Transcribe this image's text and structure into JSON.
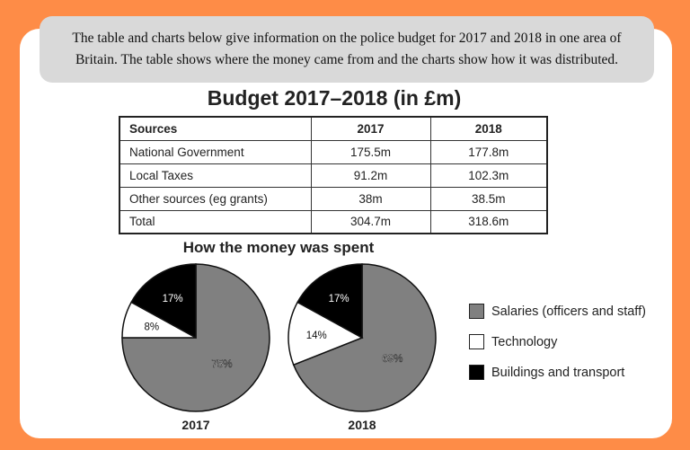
{
  "intro": "The table and charts below give information on the police budget for 2017 and 2018 in one area of Britain. The table shows where the money came from and the charts show how it was distributed.",
  "chart_data": [
    {
      "type": "table",
      "title": "Budget 2017–2018 (in £m)",
      "columns": [
        "Sources",
        "2017",
        "2018"
      ],
      "rows": [
        [
          "National Government",
          "175.5m",
          "177.8m"
        ],
        [
          "Local Taxes",
          "91.2m",
          "102.3m"
        ],
        [
          "Other sources (eg grants)",
          "38m",
          "38.5m"
        ],
        [
          "Total",
          "304.7m",
          "318.6m"
        ]
      ]
    },
    {
      "type": "pie",
      "title": "How the money was spent",
      "categories": [
        "Salaries (officers and staff)",
        "Technology",
        "Buildings and transport"
      ],
      "colors": [
        "#808080",
        "#ffffff",
        "#000000"
      ],
      "series": [
        {
          "name": "2017",
          "values": [
            75,
            8,
            17
          ]
        },
        {
          "name": "2018",
          "values": [
            69,
            14,
            17
          ]
        }
      ],
      "legend": "right"
    }
  ]
}
